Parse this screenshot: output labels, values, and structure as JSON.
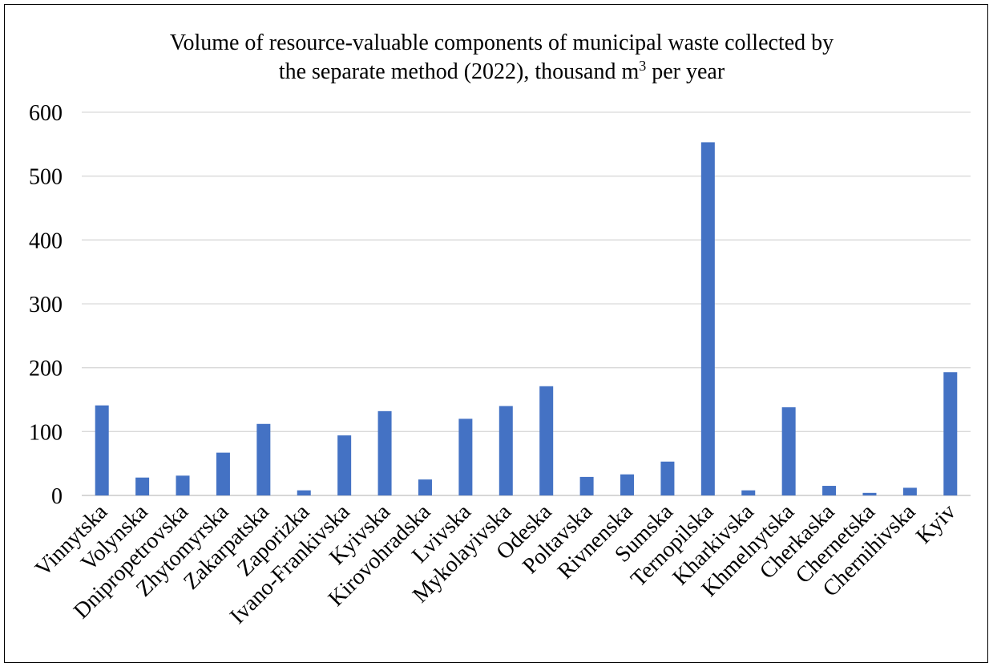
{
  "chart_data": {
    "type": "bar",
    "title_line1": "Volume of resource-valuable components of municipal  waste collected by",
    "title_line2_prefix": "the separate method (2022), thousand m",
    "title_line2_sup": "3",
    "title_line2_suffix": " per year",
    "xlabel": "",
    "ylabel": "",
    "ylim": [
      0,
      600
    ],
    "yticks": [
      0,
      100,
      200,
      300,
      400,
      500,
      600
    ],
    "grid": true,
    "legend": "none",
    "bar_color": "#4472C4",
    "categories": [
      "Vinnytska",
      "Volynska",
      "Dnipropetrovska",
      "Zhytomyrska",
      "Zakarpatska",
      "Zaporizka",
      "Ivano-Frankivska",
      "Kyivska",
      "Kirovohradska",
      "Lvivska",
      "Mykolayivska",
      "Odeska",
      "Poltavska",
      "Rivnenska",
      "Sumska",
      "Ternopilska",
      "Kharkivska",
      "Khmelnytska",
      "Cherkaska",
      "Chernetska",
      "Chernihivska",
      "Kyiv"
    ],
    "values": [
      141,
      28,
      31,
      67,
      112,
      8,
      94,
      132,
      25,
      120,
      140,
      171,
      29,
      33,
      53,
      553,
      8,
      138,
      15,
      4,
      12,
      193
    ]
  }
}
